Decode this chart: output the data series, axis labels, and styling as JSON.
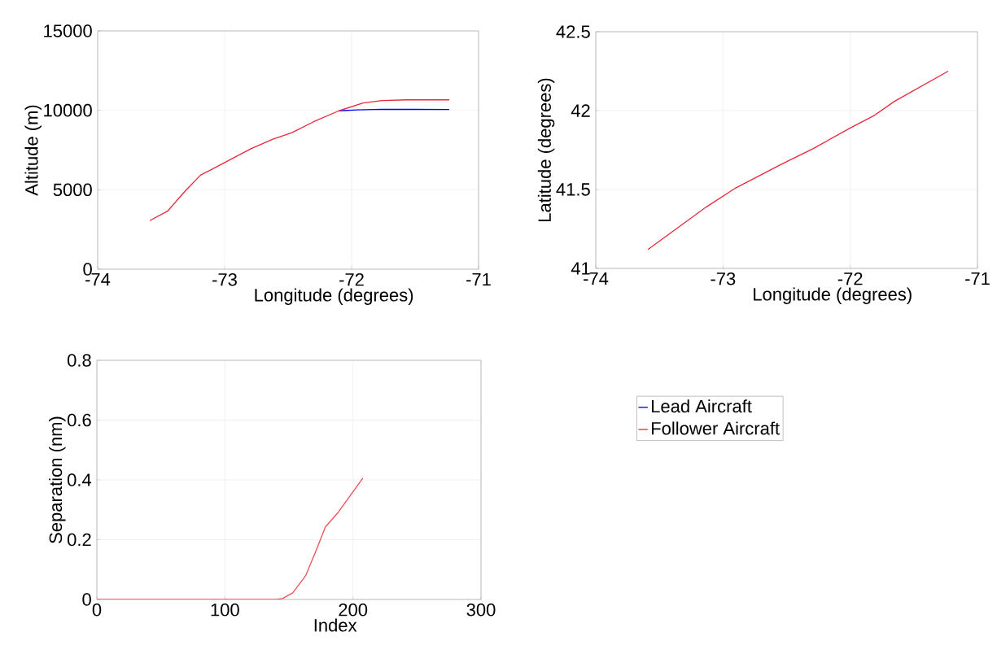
{
  "chart_data": [
    {
      "type": "line",
      "xlabel": "Longitude (degrees)",
      "ylabel": "Altitude (m)",
      "xlim": [
        -74,
        -71
      ],
      "ylim": [
        0,
        15000
      ],
      "xticks": [
        -74,
        -73,
        -72,
        -71
      ],
      "yticks": [
        0,
        5000,
        10000,
        15000
      ],
      "grid": true,
      "legend": "bottom right",
      "series": [
        {
          "name": "Lead Aircraft",
          "color": "#0000ff",
          "x": [
            -72.1,
            -71.96,
            -71.76,
            -71.23
          ],
          "values": [
            9970,
            10030,
            10070,
            10050
          ]
        },
        {
          "name": "Follower Aircraft",
          "color": "#e8283c",
          "x": [
            -73.59,
            -73.45,
            -73.31,
            -73.19,
            -73.0,
            -72.79,
            -72.62,
            -72.47,
            -72.3,
            -72.1,
            -71.91,
            -71.76,
            -71.56,
            -71.23
          ],
          "values": [
            3060,
            3650,
            4930,
            5920,
            6710,
            7600,
            8190,
            8590,
            9280,
            9970,
            10460,
            10620,
            10660,
            10660
          ]
        }
      ]
    },
    {
      "type": "line",
      "xlabel": "Longitude (degrees)",
      "ylabel": "Latitude (degrees)",
      "xlim": [
        -74,
        -71
      ],
      "ylim": [
        41,
        42.5
      ],
      "xticks": [
        -74,
        -73,
        -72,
        -71
      ],
      "yticks": [
        41,
        41.5,
        42,
        42.5
      ],
      "grid": true,
      "series": [
        {
          "color": "#e8283c",
          "x": [
            -73.59,
            -73.13,
            -72.9,
            -72.54,
            -72.29,
            -72.0,
            -71.81,
            -71.65,
            -71.23
          ],
          "values": [
            41.12,
            41.39,
            41.51,
            41.66,
            41.76,
            41.89,
            41.97,
            42.06,
            42.25
          ]
        }
      ]
    },
    {
      "type": "line",
      "xlabel": "Index",
      "ylabel": "Separation (nm)",
      "xlim": [
        0,
        300
      ],
      "ylim": [
        0,
        0.8
      ],
      "xticks": [
        0,
        100,
        200,
        300
      ],
      "yticks": [
        0,
        0.2,
        0.4,
        0.6,
        0.8
      ],
      "grid": true,
      "series": [
        {
          "color": "#f0505a",
          "x": [
            0,
            140,
            145,
            153,
            163,
            171,
            178.5,
            188.6,
            207.7
          ],
          "values": [
            0,
            0,
            0.003,
            0.022,
            0.079,
            0.161,
            0.243,
            0.292,
            0.406
          ]
        }
      ]
    }
  ]
}
